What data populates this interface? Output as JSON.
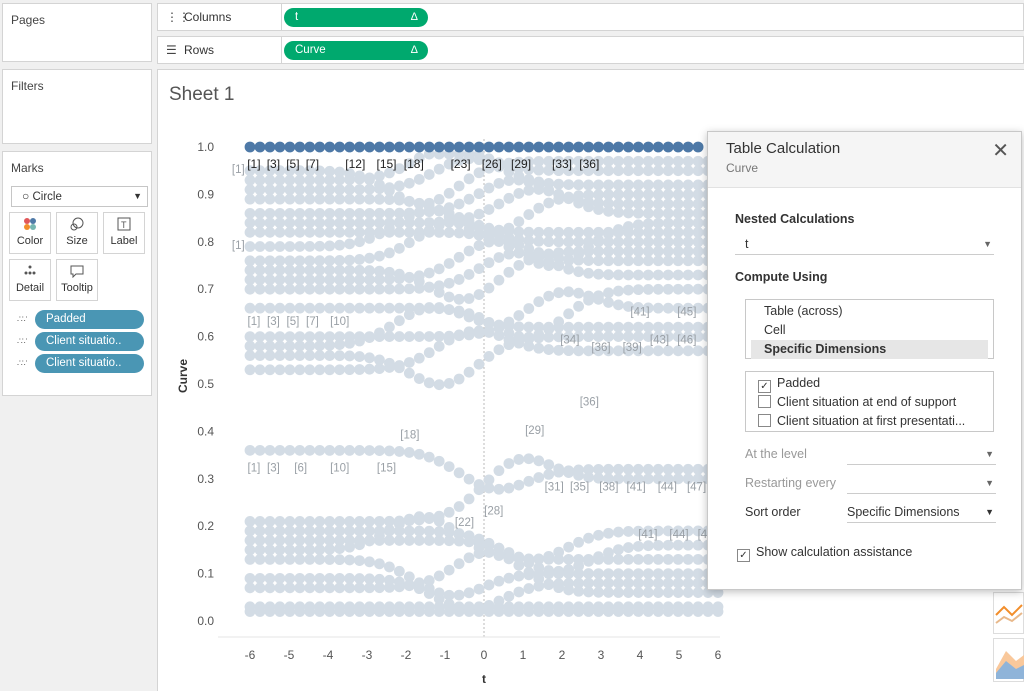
{
  "left": {
    "pages_title": "Pages",
    "filters_title": "Filters",
    "marks_title": "Marks",
    "mark_type": "Circle",
    "marks_buttons": [
      {
        "label": "Color",
        "icon": "color-icon"
      },
      {
        "label": "Size",
        "icon": "size-icon"
      },
      {
        "label": "Label",
        "icon": "label-icon"
      },
      {
        "label": "Detail",
        "icon": "detail-icon"
      },
      {
        "label": "Tooltip",
        "icon": "tooltip-icon"
      }
    ],
    "mark_pills": [
      "Padded",
      "Client situatio..",
      "Client situatio.."
    ]
  },
  "shelves": {
    "columns_label": "Columns",
    "columns_pill": "t",
    "rows_label": "Rows",
    "rows_pill": "Curve",
    "delta": "Δ"
  },
  "sheet": {
    "title": "Sheet 1",
    "chart_data": {
      "type": "scatter",
      "xlabel": "t",
      "ylabel": "Curve",
      "xlim": [
        -6.5,
        6.5
      ],
      "ylim": [
        0,
        1.0
      ],
      "xticks": [
        "-6",
        "-5",
        "-4",
        "-3",
        "-2",
        "-1",
        "0",
        "1",
        "2",
        "3",
        "4",
        "5",
        "6"
      ],
      "yticks": [
        "1.0",
        "0.9",
        "0.8",
        "0.7",
        "0.6",
        "0.5",
        "0.4",
        "0.3",
        "0.2",
        "0.1",
        "0.0"
      ],
      "highlight_series": {
        "y": 1.0,
        "color": "#4e79a7"
      },
      "point_color": "#d3dce5",
      "top_labels": [
        {
          "x": -5.9,
          "text": "[1]"
        },
        {
          "x": -5.4,
          "text": "[3]"
        },
        {
          "x": -4.9,
          "text": "[5]"
        },
        {
          "x": -4.4,
          "text": "[7]"
        },
        {
          "x": -3.3,
          "text": "[12]"
        },
        {
          "x": -2.5,
          "text": "[15]"
        },
        {
          "x": -1.8,
          "text": "[18]"
        },
        {
          "x": -0.6,
          "text": "[23]"
        },
        {
          "x": 0.2,
          "text": "[26]"
        },
        {
          "x": 0.95,
          "text": "[29]"
        },
        {
          "x": 2.0,
          "text": "[33]"
        },
        {
          "x": 2.7,
          "text": "[36]"
        }
      ],
      "annotations": [
        {
          "x": -6.3,
          "y": 0.945,
          "text": "[1]"
        },
        {
          "x": -6.3,
          "y": 0.785,
          "text": "[1]"
        },
        {
          "x": -5.9,
          "y": 0.625,
          "text": "[1]"
        },
        {
          "x": -5.4,
          "y": 0.625,
          "text": "[3]"
        },
        {
          "x": -4.9,
          "y": 0.625,
          "text": "[5]"
        },
        {
          "x": -4.4,
          "y": 0.625,
          "text": "[7]"
        },
        {
          "x": -3.7,
          "y": 0.625,
          "text": "[10]"
        },
        {
          "x": -1.9,
          "y": 0.385,
          "text": "[18]"
        },
        {
          "x": 1.3,
          "y": 0.395,
          "text": "[29]"
        },
        {
          "x": -5.9,
          "y": 0.315,
          "text": "[1]"
        },
        {
          "x": -5.4,
          "y": 0.315,
          "text": "[3]"
        },
        {
          "x": -4.7,
          "y": 0.315,
          "text": "[6]"
        },
        {
          "x": -3.7,
          "y": 0.315,
          "text": "[10]"
        },
        {
          "x": -2.5,
          "y": 0.315,
          "text": "[15]"
        },
        {
          "x": 0.25,
          "y": 0.225,
          "text": "[28]"
        },
        {
          "x": -0.5,
          "y": 0.2,
          "text": "[22]"
        },
        {
          "x": 1.8,
          "y": 0.275,
          "text": "[31]"
        },
        {
          "x": 2.45,
          "y": 0.275,
          "text": "[35]"
        },
        {
          "x": 3.2,
          "y": 0.275,
          "text": "[38]"
        },
        {
          "x": 3.9,
          "y": 0.275,
          "text": "[41]"
        },
        {
          "x": 4.7,
          "y": 0.275,
          "text": "[44]"
        },
        {
          "x": 5.45,
          "y": 0.275,
          "text": "[47]"
        },
        {
          "x": 4.0,
          "y": 0.645,
          "text": "[41]"
        },
        {
          "x": 5.2,
          "y": 0.645,
          "text": "[45]"
        },
        {
          "x": 2.2,
          "y": 0.585,
          "text": "[34]"
        },
        {
          "x": 3.0,
          "y": 0.57,
          "text": "[36]"
        },
        {
          "x": 3.8,
          "y": 0.57,
          "text": "[39]"
        },
        {
          "x": 4.5,
          "y": 0.585,
          "text": "[43]"
        },
        {
          "x": 5.2,
          "y": 0.585,
          "text": "[46]"
        },
        {
          "x": 2.7,
          "y": 0.455,
          "text": "[36]"
        },
        {
          "x": 4.2,
          "y": 0.175,
          "text": "[41]"
        },
        {
          "x": 5.0,
          "y": 0.175,
          "text": "[44]"
        },
        {
          "x": 5.6,
          "y": 0.175,
          "text": "[4"
        }
      ]
    }
  },
  "dialog": {
    "title": "Table Calculation",
    "subtitle": "Curve",
    "nested_label": "Nested Calculations",
    "nested_value": "t",
    "compute_label": "Compute Using",
    "compute_options": [
      "Table (across)",
      "Cell",
      "Specific Dimensions"
    ],
    "selected_option": "Specific Dimensions",
    "dimensions": [
      {
        "label": "Padded",
        "checked": true
      },
      {
        "label": "Client situation at end of support",
        "checked": false
      },
      {
        "label": "Client situation at first presentati...",
        "checked": false
      }
    ],
    "at_level_label": "At the level",
    "restarting_label": "Restarting every",
    "sort_label": "Sort order",
    "sort_value": "Specific Dimensions",
    "assist_label": "Show calculation assistance",
    "assist_checked": true,
    "check_mark": "✓",
    "close_glyph": "✕"
  }
}
